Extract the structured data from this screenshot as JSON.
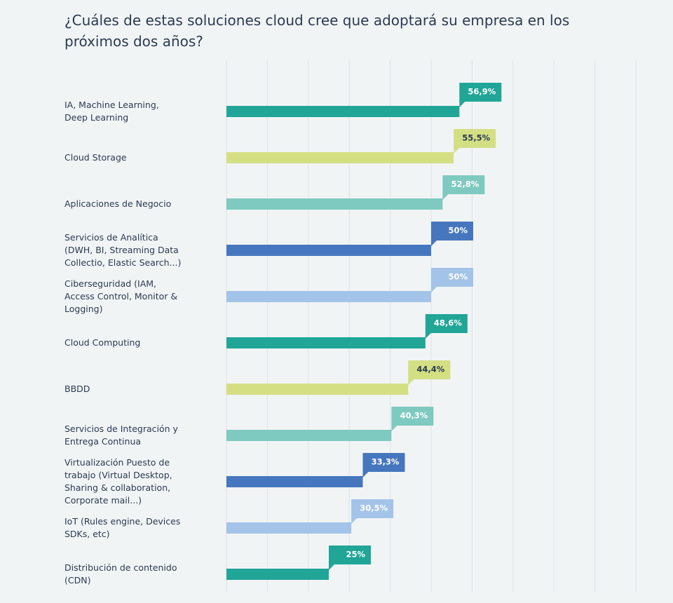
{
  "chart_data": {
    "type": "hbar",
    "title": "¿Cuáles de estas soluciones cloud cree que adoptará su empresa en los próximos dos años?",
    "categories": [
      "IA, Machine Learning, Deep Learning",
      "Cloud Storage",
      "Aplicaciones de Negocio",
      "Servicios de Analítica (DWH, BI, Streaming Data Collectio, Elastic Search...)",
      "Ciberseguridad (IAM, Access Control, Monitor & Logging)",
      "Cloud Computing",
      "BBDD",
      "Servicios de Integración y Entrega Continua",
      "Virtualización Puesto de trabajo (Virtual Desktop, Sharing & collaboration, Corporate mail...)",
      "IoT (Rules engine, Devices SDKs, etc)",
      "Distribución de contenido (CDN)"
    ],
    "values": [
      56.9,
      55.5,
      52.8,
      50,
      50,
      48.6,
      44.4,
      40.3,
      33.3,
      30.5,
      25
    ],
    "value_labels": [
      "56,9%",
      "55,5%",
      "52,8%",
      "50%",
      "50%",
      "48,6%",
      "44,4%",
      "40,3%",
      "33,3%",
      "30,5%",
      "25%"
    ],
    "colors": [
      "#21a597",
      "#d4df84",
      "#7ecac0",
      "#4677be",
      "#a3c4e8",
      "#21a597",
      "#d4df84",
      "#7ecac0",
      "#4677be",
      "#a3c4e8",
      "#21a597"
    ],
    "xlim": [
      0,
      100
    ],
    "xticks": [
      0,
      10,
      20,
      30,
      40,
      50,
      60,
      70,
      80,
      90,
      100
    ],
    "grid": true
  }
}
